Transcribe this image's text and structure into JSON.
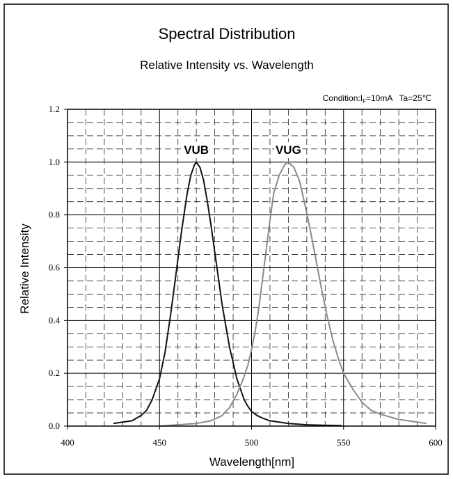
{
  "chart_data": {
    "type": "line",
    "title": "Spectral Distribution",
    "subtitle": "Relative Intensity vs. Wavelength",
    "condition": {
      "prefix": "Condition:I",
      "subscript": "F",
      "current": "=10mA",
      "temperature": "Ta=25℃"
    },
    "xlabel": "Wavelength[nm]",
    "ylabel": "Relative Intensity",
    "xlim": [
      400,
      600
    ],
    "ylim": [
      0,
      1.2
    ],
    "x_ticks": [
      400,
      450,
      500,
      550,
      600
    ],
    "y_ticks": [
      0,
      0.2,
      0.4,
      0.6,
      0.8,
      1.0,
      1.2
    ],
    "x_tick_labels": [
      "400",
      "450",
      "500",
      "550",
      "600"
    ],
    "y_tick_labels": [
      "0.0",
      "0.2",
      "0.4",
      "0.6",
      "0.8",
      "1.0",
      "1.2"
    ],
    "grid": {
      "major": true,
      "minor_dashed": true
    },
    "series": [
      {
        "name": "VUB",
        "color": "#111111",
        "points": [
          [
            425,
            0.01
          ],
          [
            430,
            0.015
          ],
          [
            435,
            0.02
          ],
          [
            440,
            0.04
          ],
          [
            443,
            0.06
          ],
          [
            446,
            0.1
          ],
          [
            450,
            0.18
          ],
          [
            453,
            0.28
          ],
          [
            456,
            0.42
          ],
          [
            459,
            0.58
          ],
          [
            462,
            0.74
          ],
          [
            465,
            0.88
          ],
          [
            467,
            0.95
          ],
          [
            469,
            0.99
          ],
          [
            470,
            1.0
          ],
          [
            472,
            0.98
          ],
          [
            474,
            0.93
          ],
          [
            476,
            0.85
          ],
          [
            478,
            0.76
          ],
          [
            480,
            0.66
          ],
          [
            482,
            0.56
          ],
          [
            484,
            0.46
          ],
          [
            486,
            0.38
          ],
          [
            488,
            0.3
          ],
          [
            490,
            0.24
          ],
          [
            492,
            0.18
          ],
          [
            494,
            0.14
          ],
          [
            496,
            0.1
          ],
          [
            498,
            0.075
          ],
          [
            500,
            0.055
          ],
          [
            503,
            0.04
          ],
          [
            506,
            0.03
          ],
          [
            510,
            0.02
          ],
          [
            515,
            0.015
          ],
          [
            520,
            0.01
          ],
          [
            530,
            0.005
          ],
          [
            540,
            0.003
          ],
          [
            549,
            0.002
          ]
        ]
      },
      {
        "name": "VUG",
        "color": "#8a8a8a",
        "points": [
          [
            450,
            0.0
          ],
          [
            460,
            0.005
          ],
          [
            470,
            0.01
          ],
          [
            478,
            0.02
          ],
          [
            484,
            0.04
          ],
          [
            488,
            0.07
          ],
          [
            492,
            0.12
          ],
          [
            495,
            0.17
          ],
          [
            498,
            0.23
          ],
          [
            500,
            0.29
          ],
          [
            502,
            0.36
          ],
          [
            504,
            0.45
          ],
          [
            506,
            0.56
          ],
          [
            508,
            0.67
          ],
          [
            510,
            0.78
          ],
          [
            512,
            0.88
          ],
          [
            515,
            0.95
          ],
          [
            518,
            0.99
          ],
          [
            520,
            1.0
          ],
          [
            523,
            0.98
          ],
          [
            526,
            0.93
          ],
          [
            529,
            0.84
          ],
          [
            532,
            0.74
          ],
          [
            535,
            0.63
          ],
          [
            538,
            0.52
          ],
          [
            541,
            0.42
          ],
          [
            544,
            0.33
          ],
          [
            547,
            0.26
          ],
          [
            550,
            0.2
          ],
          [
            555,
            0.14
          ],
          [
            560,
            0.09
          ],
          [
            565,
            0.06
          ],
          [
            570,
            0.045
          ],
          [
            575,
            0.035
          ],
          [
            580,
            0.025
          ],
          [
            585,
            0.02
          ],
          [
            590,
            0.015
          ],
          [
            595,
            0.01
          ]
        ]
      }
    ],
    "annotations": [
      {
        "text": "VUB",
        "series": "VUB",
        "x": 470,
        "y": 1.0
      },
      {
        "text": "VUG",
        "series": "VUG",
        "x": 520,
        "y": 1.0
      }
    ]
  }
}
